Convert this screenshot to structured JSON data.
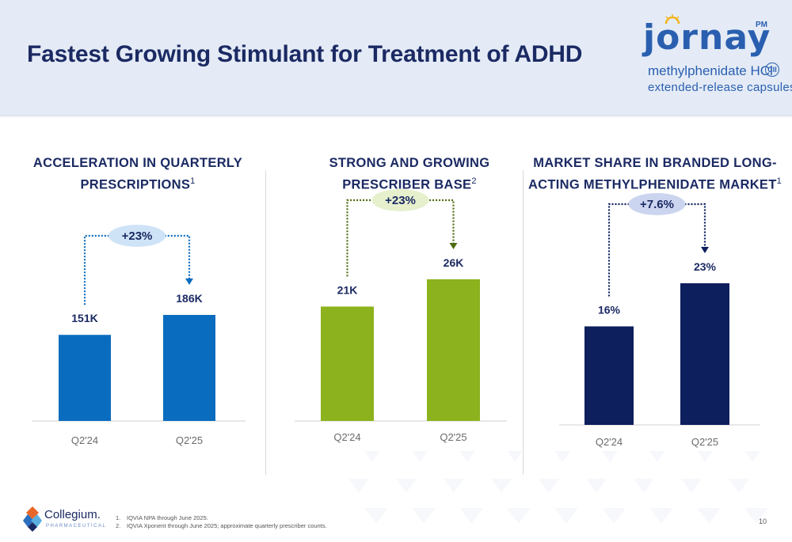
{
  "page": {
    "title": "Fastest Growing Stimulant for Treatment of ADHD",
    "page_number": "10"
  },
  "brand_logo": {
    "word": "jornay",
    "mark": "PM",
    "line1": "methylphenidate HCl",
    "schedule": "CII",
    "line2": "extended-release capsules",
    "color": "#2a5fb0"
  },
  "company_logo": {
    "name": "Collegium.",
    "sub": "PHARMACEUTICAL"
  },
  "footnotes": [
    {
      "num": "1.",
      "text": "IQVIA NPA through June 2025."
    },
    {
      "num": "2.",
      "text": "IQVIA Xponent through June 2025; approximate quarterly prescriber counts."
    }
  ],
  "chart_data": [
    {
      "type": "bar",
      "title": "ACCELERATION IN QUARTERLY PRESCRIPTIONS",
      "title_lines": [
        "ACCELERATION IN QUARTERLY",
        "PRESCRIPTIONS"
      ],
      "footnote_ref": "1",
      "categories": [
        "Q2'24",
        "Q2'25"
      ],
      "values": [
        151,
        186
      ],
      "data_labels": [
        "151K",
        "186K"
      ],
      "growth_label": "+23%",
      "color": "#0a6cbf",
      "growth_bubble_color": "#cfe3f7",
      "ylim": [
        0,
        200
      ]
    },
    {
      "type": "bar",
      "title": "STRONG AND GROWING PRESCRIBER BASE",
      "title_lines": [
        "STRONG AND GROWING",
        "PRESCRIBER BASE"
      ],
      "footnote_ref": "2",
      "categories": [
        "Q2'24",
        "Q2'25"
      ],
      "values": [
        21,
        26
      ],
      "data_labels": [
        "21K",
        "26K"
      ],
      "growth_label": "+23%",
      "color": "#8cb21e",
      "growth_bubble_color": "#e6f0cd",
      "arrow_color": "#4f6b10",
      "ylim": [
        0,
        26
      ]
    },
    {
      "type": "bar",
      "title": "MARKET SHARE IN BRANDED LONG-ACTING METHYLPHENIDATE MARKET",
      "title_lines": [
        "MARKET SHARE IN BRANDED LONG-",
        "ACTING METHYLPHENIDATE MARKET"
      ],
      "footnote_ref": "1",
      "categories": [
        "Q2'24",
        "Q2'25"
      ],
      "values": [
        16,
        23
      ],
      "data_labels": [
        "16%",
        "23%"
      ],
      "growth_label": "+7.6%",
      "color": "#0d1f5c",
      "growth_bubble_color": "#ccd5ef",
      "arrow_color": "#0d1f5c",
      "ylim": [
        0,
        25
      ]
    }
  ]
}
